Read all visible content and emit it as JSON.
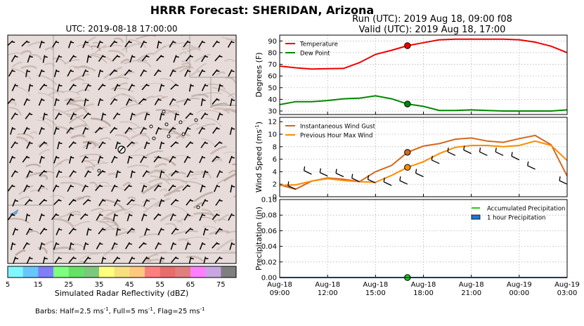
{
  "header": {
    "title": "HRRR Forecast: SHERIDAN, Arizona",
    "run_label": "Run (UTC): 2019 Aug 18, 09:00 f08",
    "valid_label": "Valid (UTC): 2019 Aug 18, 17:00"
  },
  "map": {
    "title": "UTC: 2019-08-18 17:00:00",
    "terrain_color": "#e7dcd9",
    "shade_color": "#c8b8b2"
  },
  "colorbar": {
    "label": "Simulated Radar Reflectivity (dBZ)",
    "ticks": [
      "5",
      "15",
      "25",
      "35",
      "45",
      "55",
      "65",
      "75"
    ],
    "colors": [
      "#7ff7ff",
      "#67c7fb",
      "#7f7ff7",
      "#7fff7f",
      "#67e067",
      "#7ec87e",
      "#ffff7f",
      "#f7e07f",
      "#ffc87f",
      "#ff7f7f",
      "#e86c6c",
      "#e07f7f",
      "#ff7fff",
      "#c8a7e0",
      "#7f7f7f"
    ]
  },
  "footnote": {
    "prefix": "Barbs: Half=2.5 ms",
    "full": ", Full=5 ms",
    "flag": ", Flag=25 ms"
  },
  "chart_data": [
    {
      "type": "line",
      "ylabel": "Degrees (F)",
      "ylim": [
        27,
        95
      ],
      "yticks": [
        "30",
        "40",
        "50",
        "60",
        "70",
        "80",
        "90"
      ],
      "grid": true,
      "legend_position": "top-left",
      "x": [
        "Aug-18 09:00",
        "Aug-18 10:00",
        "Aug-18 11:00",
        "Aug-18 12:00",
        "Aug-18 13:00",
        "Aug-18 14:00",
        "Aug-18 15:00",
        "Aug-18 16:00",
        "Aug-18 17:00",
        "Aug-18 18:00",
        "Aug-18 19:00",
        "Aug-18 20:00",
        "Aug-18 21:00",
        "Aug-18 22:00",
        "Aug-18 23:00",
        "Aug-19 00:00",
        "Aug-19 01:00",
        "Aug-19 02:00",
        "Aug-19 03:00"
      ],
      "series": [
        {
          "name": "Temperature",
          "color": "#ee0000",
          "values": [
            68.5,
            67,
            66,
            66.3,
            66.5,
            71.5,
            78.5,
            82,
            86,
            88.5,
            91,
            91.5,
            91.5,
            91.5,
            91.5,
            91,
            89,
            85.5,
            80
          ]
        },
        {
          "name": "Dew Point",
          "color": "#008800",
          "values": [
            35.5,
            38,
            38,
            39,
            40.5,
            41,
            43,
            40.5,
            36,
            34,
            30.5,
            30.5,
            31,
            30.5,
            30,
            30,
            30,
            30,
            31
          ]
        }
      ],
      "markers": {
        "x": "Aug-18 17:00",
        "values": [
          86,
          36
        ]
      }
    },
    {
      "type": "line",
      "ylabel": "Wind Speed (ms",
      "ylabel_exp": "-1",
      "ylim": [
        0,
        12.7
      ],
      "yticks": [
        "0",
        "2",
        "4",
        "6",
        "8",
        "10",
        "12"
      ],
      "grid": true,
      "legend_position": "top-left",
      "x": [
        "Aug-18 09:00",
        "Aug-18 10:00",
        "Aug-18 11:00",
        "Aug-18 12:00",
        "Aug-18 13:00",
        "Aug-18 14:00",
        "Aug-18 15:00",
        "Aug-18 16:00",
        "Aug-18 17:00",
        "Aug-18 18:00",
        "Aug-18 19:00",
        "Aug-18 20:00",
        "Aug-18 21:00",
        "Aug-18 22:00",
        "Aug-18 23:00",
        "Aug-19 00:00",
        "Aug-19 01:00",
        "Aug-19 02:00",
        "Aug-19 03:00"
      ],
      "series": [
        {
          "name": "Instantaneous Wind Gust",
          "color": "#d2691e",
          "values": [
            1.9,
            1.2,
            2.5,
            3,
            2.8,
            2.4,
            4,
            5,
            7.1,
            8.1,
            8.5,
            9.2,
            9.4,
            8.9,
            8.7,
            9.3,
            9.8,
            8.3,
            3.3
          ]
        },
        {
          "name": "Previous Hour Max Wind",
          "color": "#ff8c00",
          "values": [
            1.8,
            1.9,
            2.5,
            2.9,
            2.6,
            2.4,
            2.3,
            3.4,
            4.7,
            5.6,
            6.9,
            7.9,
            8.2,
            8.2,
            8,
            8.2,
            8.9,
            8.2,
            5.8
          ]
        }
      ],
      "markers": {
        "x": "Aug-18 17:00",
        "values": [
          7.1,
          4.7
        ]
      },
      "barbs": {
        "x": [
          "Aug-18 10:00",
          "Aug-18 11:00",
          "Aug-18 12:00",
          "Aug-18 13:00",
          "Aug-18 14:00",
          "Aug-18 15:00",
          "Aug-18 16:00",
          "Aug-18 17:00",
          "Aug-18 18:00",
          "Aug-18 19:00",
          "Aug-18 20:00",
          "Aug-18 21:00",
          "Aug-18 22:00",
          "Aug-18 23:00",
          "Aug-19 00:00",
          "Aug-19 01:00",
          "Aug-19 02:00",
          "Aug-19 03:00"
        ],
        "values": [
          1.2,
          3.6,
          3.3,
          3.2,
          2.4,
          2.2,
          1.8,
          2,
          3.2,
          5.3,
          6.6,
          6.9,
          6.6,
          6.6,
          5.9,
          4.4,
          null,
          2
        ]
      }
    },
    {
      "type": "bar",
      "ylabel": "Precipitation (in)",
      "ylim": [
        0,
        0.1
      ],
      "yticks": [
        "0.00",
        "0.02",
        "0.04",
        "0.06",
        "0.08",
        "0.10"
      ],
      "grid": true,
      "legend_position": "top-right",
      "x": [
        "Aug-18 09:00",
        "Aug-18 10:00",
        "Aug-18 11:00",
        "Aug-18 12:00",
        "Aug-18 13:00",
        "Aug-18 14:00",
        "Aug-18 15:00",
        "Aug-18 16:00",
        "Aug-18 17:00",
        "Aug-18 18:00",
        "Aug-18 19:00",
        "Aug-18 20:00",
        "Aug-18 21:00",
        "Aug-18 22:00",
        "Aug-18 23:00",
        "Aug-19 00:00",
        "Aug-19 01:00",
        "Aug-19 02:00",
        "Aug-19 03:00"
      ],
      "series": [
        {
          "name": "Accumulated Precipitation",
          "color": "#22cc22",
          "values": [
            0,
            0,
            0,
            0,
            0,
            0,
            0,
            0,
            0,
            0,
            0,
            0,
            0,
            0,
            0,
            0,
            0,
            0,
            0
          ]
        },
        {
          "name": "1 hour Precipitation",
          "color": "#1f77d4",
          "values": [
            0,
            0,
            0,
            0,
            0,
            0,
            0,
            0,
            0,
            0,
            0,
            0,
            0,
            0,
            0,
            0,
            0,
            0,
            0
          ]
        }
      ],
      "markers": {
        "x": "Aug-18 17:00",
        "values": [
          0
        ]
      },
      "xticks": [
        {
          "line1": "Aug-18",
          "line2": "09:00"
        },
        {
          "line1": "Aug-18",
          "line2": "12:00"
        },
        {
          "line1": "Aug-18",
          "line2": "15:00"
        },
        {
          "line1": "Aug-18",
          "line2": "18:00"
        },
        {
          "line1": "Aug-18",
          "line2": "21:00"
        },
        {
          "line1": "Aug-19",
          "line2": "00:00"
        },
        {
          "line1": "Aug-19",
          "line2": "03:00"
        }
      ]
    }
  ]
}
